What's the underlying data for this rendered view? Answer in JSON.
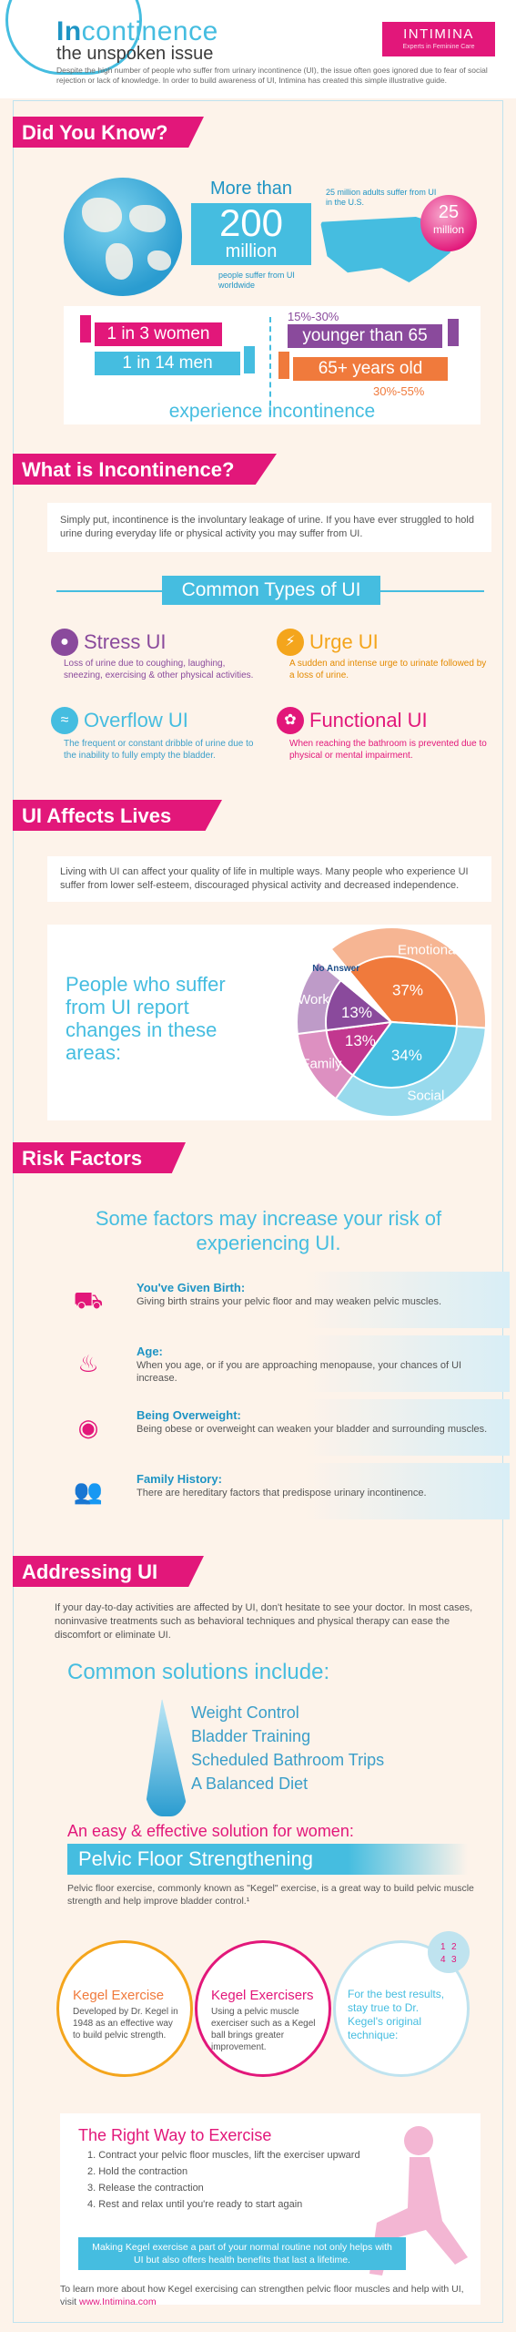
{
  "header": {
    "title_first": "In",
    "title_rest": "continence",
    "subtitle": "the unspoken issue",
    "intro": "Despite the high number of people who suffer from urinary incontinence (UI), the issue often goes ignored due to fear of social rejection or lack of knowledge. In order to build awareness of UI, Intimina has created this simple illustrative guide.",
    "logo_name": "INTIMINA",
    "logo_tagline": "Experts in Feminine Care"
  },
  "did_you_know": {
    "heading": "Did You Know?",
    "more_than": "More than",
    "big_number": "200",
    "million": "million",
    "worldwide_note": "people suffer from UI worldwide",
    "us_note": "25 million adults suffer from UI in the U.S.",
    "badge_number": "25",
    "badge_unit": "million",
    "women_ratio": "1 in 3 women",
    "men_ratio": "1 in 14 men",
    "younger_pct": "15%-30%",
    "younger_label": "younger than 65",
    "older_label": "65+ years old",
    "older_pct": "30%-55%",
    "experience": "experience incontinence"
  },
  "what_is": {
    "heading": "What is Incontinence?",
    "definition": "Simply put, incontinence is the involuntary leakage of urine. If you have ever struggled to hold urine during everyday life or physical activity you may suffer from UI.",
    "types_title": "Common Types of UI",
    "types": [
      {
        "name": "Stress UI",
        "desc": "Loss of urine due to coughing, laughing, sneezing, exercising & other physical activities.",
        "icon": "stress-icon",
        "color": "#8a4a9c"
      },
      {
        "name": "Urge UI",
        "desc": "A sudden and intense urge to urinate followed by a loss of urine.",
        "icon": "lightning-icon",
        "color": "#f4a51c"
      },
      {
        "name": "Overflow UI",
        "desc": "The frequent or constant dribble of urine due to the inability to fully empty the bladder.",
        "icon": "wave-icon",
        "color": "#45bde0"
      },
      {
        "name": "Functional UI",
        "desc": "When reaching the bathroom is prevented due to physical or mental impairment.",
        "icon": "flower-icon",
        "color": "#e2177a"
      }
    ]
  },
  "affects": {
    "heading": "UI Affects Lives",
    "text": "Living with UI can affect your quality of life in multiple ways. Many people who experience UI suffer from lower self-esteem, discouraged physical activity and decreased independence.",
    "panel_text": "People who suffer from UI report changes in these areas:",
    "chart_data": {
      "type": "pie",
      "categories": [
        "Emotional",
        "Social",
        "Family",
        "Work",
        "No Answer"
      ],
      "values": [
        37,
        34,
        13,
        13,
        3
      ],
      "labels": [
        "37%",
        "34%",
        "13%",
        "13%",
        ""
      ],
      "colors": [
        "#f07a3c",
        "#45bde0",
        "#c2378f",
        "#8a4a9c",
        "#ffffff"
      ]
    }
  },
  "risk": {
    "heading": "Risk Factors",
    "intro": "Some factors may increase your risk of experiencing UI.",
    "items": [
      {
        "title": "You've Given Birth:",
        "desc": "Giving birth strains your pelvic floor and may weaken pelvic muscles.",
        "icon": "stroller-icon"
      },
      {
        "title": "Age:",
        "desc": "When you age, or if you are approaching menopause, your chances of UI increase.",
        "icon": "cake-icon"
      },
      {
        "title": "Being Overweight:",
        "desc": "Being obese or overweight can weaken your bladder and surrounding muscles.",
        "icon": "scale-icon"
      },
      {
        "title": "Family History:",
        "desc": "There are hereditary factors that predispose urinary incontinence.",
        "icon": "family-icon"
      }
    ]
  },
  "addressing": {
    "heading": "Addressing UI",
    "text": "If your day-to-day activities are affected by UI, don't hesitate to see your doctor. In most cases, noninvasive treatments such as behavioral techniques and physical therapy can ease the discomfort or eliminate UI.",
    "solutions_title": "Common solutions include:",
    "solutions": [
      "Weight Control",
      "Bladder Training",
      "Scheduled Bathroom Trips",
      "A Balanced Diet"
    ],
    "easy_title": "An easy & effective solution for women:",
    "pelvic_title": "Pelvic Floor Strengthening",
    "pelvic_text": "Pelvic floor exercise, commonly known as \"Kegel\" exercise, is a great way to build pelvic muscle strength and help improve bladder control.¹",
    "circles": [
      {
        "title": "Kegel Exercise",
        "desc": "Developed by Dr. Kegel in 1948 as an effective way to build pelvic strength."
      },
      {
        "title": "Kegel Exercisers",
        "desc": "Using a pelvic muscle exerciser such as a Kegel ball brings greater improvement."
      },
      {
        "title": "",
        "desc": "For the best results, stay true to Dr. Kegel's original technique:"
      }
    ],
    "steps_badge": [
      "1",
      "2",
      "4",
      "3"
    ],
    "right_way_title": "The Right Way to Exercise",
    "steps": [
      "1. Contract your pelvic floor muscles, lift the exerciser upward",
      "2. Hold the contraction",
      "3. Release the contraction",
      "4. Rest and relax until you're ready to start again"
    ],
    "routine_text": "Making Kegel exercise a part of your normal routine not only helps with UI but also offers health benefits that last a lifetime.",
    "footer_text": "To learn more about how Kegel exercising can strengthen pelvic floor muscles and help with UI, visit",
    "footer_link": "www.Intimina.com"
  }
}
